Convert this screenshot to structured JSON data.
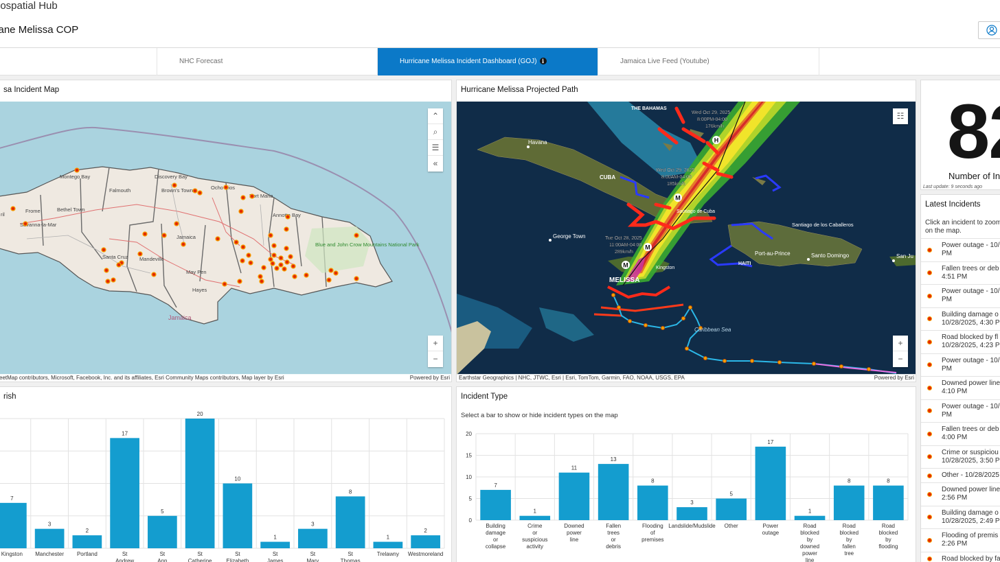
{
  "header": {
    "hub_title": "eospatial Hub",
    "app_title": "cane Melissa COP"
  },
  "tabs": [
    {
      "label": ""
    },
    {
      "label": "NHC Forecast"
    },
    {
      "label": "Hurricane Melissa Incident Dashboard (GOJ)"
    },
    {
      "label": "Jamaica Live Feed (Youtube)"
    },
    {
      "label": ""
    }
  ],
  "incident_map": {
    "title": "sa Incident Map",
    "labels": [
      "Montego Bay",
      "Discovery Bay",
      "Ocho Rios",
      "Brown's Town",
      "Port Maria",
      "Annotto Bay",
      "Falmouth",
      "Frome",
      "Bethel Town",
      "Savanna-la-Mar",
      "Santa Cruz",
      "Mandeville",
      "Jamaica",
      "May Pen",
      "Hayes",
      "Blue and John Crow Mountains National Park",
      "Jamaica",
      "ril"
    ],
    "attribution": "eetMap contributors, Microsoft, Facebook, Inc. and its affiliates, Esri Community Maps contributors, Map layer by Esri",
    "powered": "Powered by Esri",
    "icons": [
      "collapse-icon",
      "search-icon",
      "list-icon",
      "chevron-left-icon",
      "zoom-in-icon",
      "zoom-out-icon"
    ]
  },
  "projected_path": {
    "title": "Hurricane Melissa Projected Path",
    "labels": {
      "bahamas": "THE BAHAMAS",
      "havana": "Havana",
      "cuba": "CUBA",
      "george_town": "George Town",
      "santiago_cuba": "Santiago de Cuba",
      "santiago_cab": "Santiago de los Caballeros",
      "haiti": "HAITI",
      "port_au_prince": "Port-au-Prince",
      "santo_domingo": "Santo Domingo",
      "san_juan": "San Ju",
      "kingston": "Kingston",
      "melissa": "MELISSA",
      "sea": "Caribbean Sea",
      "f1": [
        "Wed Oct 29, 2025",
        "8:00PM-04:00",
        "176km/h"
      ],
      "f2": [
        "Wed Oct 29, 2025",
        "8:00AM-04:00",
        "185km/h"
      ],
      "f3": [
        "Tue Oct 28, 2025",
        "11:00AM-04:00",
        "289km/h"
      ]
    },
    "attribution": "Earthstar Geographics | NHC, JTWC, Esri | Esri, TomTom, Garmin, FAO, NOAA, USGS, EPA",
    "powered": "Powered by Esri"
  },
  "count": {
    "value": "82",
    "label": "Number of In",
    "updated": "Last update: 9 seconds ago"
  },
  "latest": {
    "title": "Latest Incidents",
    "desc": "Click an incident to zoom on the map.",
    "items": [
      {
        "l1": "Power outage - 10/",
        "l2": "PM"
      },
      {
        "l1": "Fallen trees or deb",
        "l2": "4:51 PM"
      },
      {
        "l1": "Power outage - 10/",
        "l2": "PM"
      },
      {
        "l1": "Building damage o",
        "l2": "10/28/2025, 4:30 P"
      },
      {
        "l1": "Road blocked by fl",
        "l2": "10/28/2025, 4:23 P"
      },
      {
        "l1": "Power outage - 10/",
        "l2": "PM"
      },
      {
        "l1": "Downed power line",
        "l2": "4:10 PM"
      },
      {
        "l1": "Power outage - 10/",
        "l2": "PM"
      },
      {
        "l1": "Fallen trees or deb",
        "l2": "4:00 PM"
      },
      {
        "l1": "Crime or suspiciou",
        "l2": "10/28/2025, 3:50 P"
      },
      {
        "l1": "Other - 10/28/2025",
        "l2": ""
      },
      {
        "l1": "Downed power line",
        "l2": "2:56 PM"
      },
      {
        "l1": "Building damage o",
        "l2": "10/28/2025, 2:49 P"
      },
      {
        "l1": "Flooding of premis",
        "l2": "2:26 PM"
      },
      {
        "l1": "Road blocked by fa",
        "l2": ""
      }
    ]
  },
  "parish_chart": {
    "title": "rish"
  },
  "type_chart": {
    "title": "Incident Type",
    "subtitle": "Select a bar to show or hide incident types on the map"
  },
  "chart_data": [
    {
      "type": "bar",
      "categories": [
        "Kingston",
        "Manchester",
        "Portland",
        "St Andrew",
        "St Ann",
        "St Catherine",
        "St Elizabeth",
        "St James",
        "St Mary",
        "St Thomas",
        "Trelawny",
        "Westmoreland"
      ],
      "values": [
        7,
        3,
        2,
        17,
        5,
        20,
        10,
        1,
        3,
        8,
        1,
        2
      ],
      "color": "#149dcf"
    },
    {
      "type": "bar",
      "categories": [
        "Building damage or collapse",
        "Crime or suspicious activity",
        "Downed power line",
        "Fallen trees or debris",
        "Flooding of premises",
        "Landslide/Mudslide",
        "Other",
        "Power outage",
        "Road blocked by downed power line",
        "Road blocked by fallen tree",
        "Road blocked by flooding"
      ],
      "values": [
        7,
        1,
        11,
        13,
        8,
        3,
        5,
        17,
        1,
        8,
        8
      ],
      "yticks": [
        0,
        5,
        10,
        15,
        20
      ],
      "ylim": [
        0,
        20
      ],
      "color": "#149dcf"
    }
  ]
}
